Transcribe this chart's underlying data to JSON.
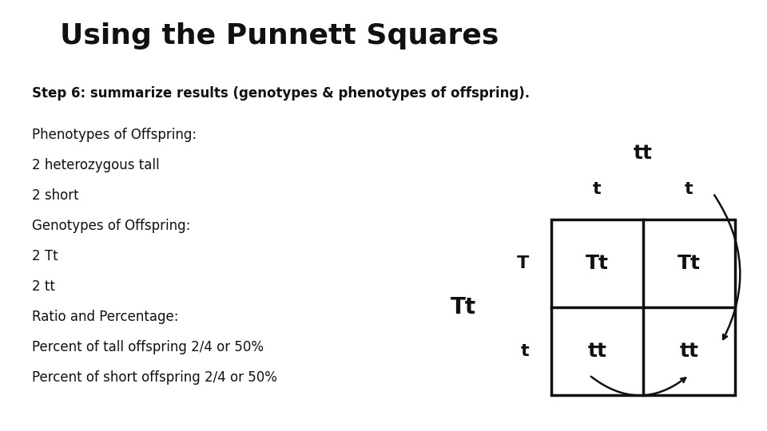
{
  "title": "Using the Punnett Squares",
  "subtitle": "Step 6: summarize results (genotypes & phenotypes of offspring).",
  "body_lines": [
    "Phenotypes of Offspring:",
    "2 heterozygous tall",
    "2 short",
    "Genotypes of Offspring:",
    "2 Tt",
    "2 tt",
    "Ratio and Percentage:",
    "Percent of tall offspring 2/4 or 50%",
    "Percent of short offspring 2/4 or 50%"
  ],
  "bg_color": "#ffffff",
  "title_color": "#111111",
  "text_color": "#111111",
  "grid_color": "#111111",
  "title_fontsize": 26,
  "subtitle_fontsize": 12,
  "body_fontsize": 12,
  "cell_labels": [
    [
      "Tt",
      "Tt"
    ],
    [
      "tt",
      "tt"
    ]
  ],
  "col_headers": [
    "t",
    "t"
  ],
  "row_headers": [
    "T",
    "t"
  ],
  "top_label": "tt",
  "left_label": "Tt"
}
